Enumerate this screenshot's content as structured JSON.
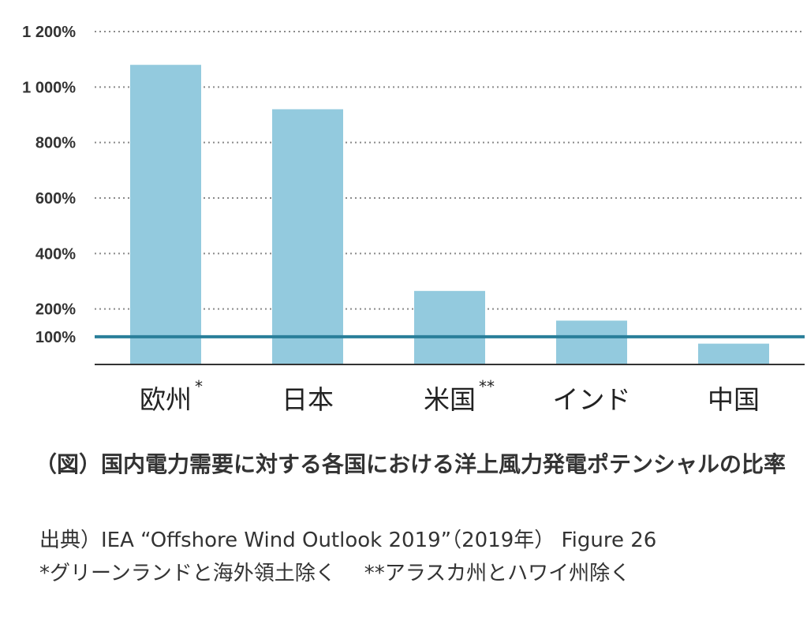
{
  "chart_data": {
    "type": "bar",
    "categories": [
      "欧州",
      "日本",
      "米国",
      "インド",
      "中国"
    ],
    "category_marks": [
      "*",
      "",
      "**",
      "",
      ""
    ],
    "values": [
      1080,
      920,
      265,
      158,
      75
    ],
    "ylim": [
      0,
      1200
    ],
    "yticks": [
      {
        "value": 1200,
        "label": "1 200%"
      },
      {
        "value": 1000,
        "label": "1 000%"
      },
      {
        "value": 800,
        "label": "800%"
      },
      {
        "value": 600,
        "label": "600%"
      },
      {
        "value": 400,
        "label": "400%"
      },
      {
        "value": 200,
        "label": "200%"
      },
      {
        "value": 100,
        "label": "100%"
      }
    ],
    "reference_line": 100,
    "grid": "dotted horizontal",
    "colors": {
      "bar": "#93cade",
      "reference": "#2a7f9a",
      "grid": "#8a8a8a",
      "axis": "#333333"
    }
  },
  "caption": {
    "title": "（図）国内電力需要に対する各国における洋上風力発電ポテンシャルの比率",
    "source": "出典）IEA “Offshore Wind Outlook 2019”（2019年） Figure 26",
    "note_left": "*グリーンランドと海外領土除く",
    "note_right": "**アラスカ州とハワイ州除く"
  }
}
